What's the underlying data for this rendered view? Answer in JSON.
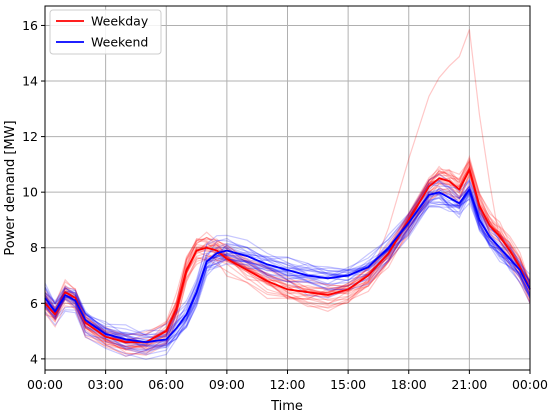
{
  "chart_data": {
    "type": "line",
    "title": "",
    "xlabel": "Time",
    "ylabel": "Power demand [MW]",
    "x_unit": "hours",
    "xlim": [
      0,
      24
    ],
    "ylim": [
      3.6,
      16.7
    ],
    "xticks": [
      {
        "value": 0,
        "label": "00:00"
      },
      {
        "value": 3,
        "label": "03:00"
      },
      {
        "value": 6,
        "label": "06:00"
      },
      {
        "value": 9,
        "label": "09:00"
      },
      {
        "value": 12,
        "label": "12:00"
      },
      {
        "value": 15,
        "label": "15:00"
      },
      {
        "value": 18,
        "label": "18:00"
      },
      {
        "value": 21,
        "label": "21:00"
      },
      {
        "value": 24,
        "label": "00:00"
      }
    ],
    "yticks": [
      {
        "value": 4,
        "label": "4"
      },
      {
        "value": 6,
        "label": "6"
      },
      {
        "value": 8,
        "label": "8"
      },
      {
        "value": 10,
        "label": "10"
      },
      {
        "value": 12,
        "label": "12"
      },
      {
        "value": 14,
        "label": "14"
      },
      {
        "value": 16,
        "label": "16"
      }
    ],
    "grid": true,
    "legend_position": "top-left",
    "x": [
      0,
      0.5,
      1,
      1.5,
      2,
      3,
      4,
      5,
      6,
      6.5,
      7,
      7.5,
      8,
      8.5,
      9,
      10,
      11,
      12,
      13,
      14,
      15,
      16,
      17,
      18,
      19,
      19.5,
      20,
      20.5,
      21,
      21.5,
      22,
      22.5,
      23,
      23.5,
      24
    ],
    "series": [
      {
        "name": "Weekday",
        "color": "#ff0000",
        "values": [
          6.0,
          5.6,
          6.4,
          6.2,
          5.3,
          4.8,
          4.6,
          4.6,
          5.0,
          5.8,
          7.2,
          7.9,
          8.0,
          7.9,
          7.6,
          7.2,
          6.8,
          6.5,
          6.4,
          6.3,
          6.5,
          7.0,
          7.8,
          9.0,
          10.2,
          10.5,
          10.4,
          10.1,
          10.8,
          9.5,
          8.8,
          8.4,
          7.9,
          7.3,
          6.5
        ]
      },
      {
        "name": "Weekend",
        "color": "#0000ff",
        "values": [
          6.2,
          5.7,
          6.3,
          6.1,
          5.4,
          4.9,
          4.7,
          4.6,
          4.7,
          5.1,
          5.6,
          6.4,
          7.5,
          7.8,
          7.9,
          7.7,
          7.4,
          7.2,
          7.0,
          6.9,
          7.0,
          7.3,
          8.0,
          8.9,
          9.9,
          10.0,
          9.8,
          9.6,
          10.1,
          9.0,
          8.4,
          8.0,
          7.6,
          7.2,
          6.5
        ]
      }
    ],
    "background_lines": {
      "weekday_color": "#ff0000",
      "weekend_color": "#0000ff",
      "count_per_group": 24,
      "note_shown": "individual daily profiles drawn faintly behind the mean curves"
    }
  }
}
